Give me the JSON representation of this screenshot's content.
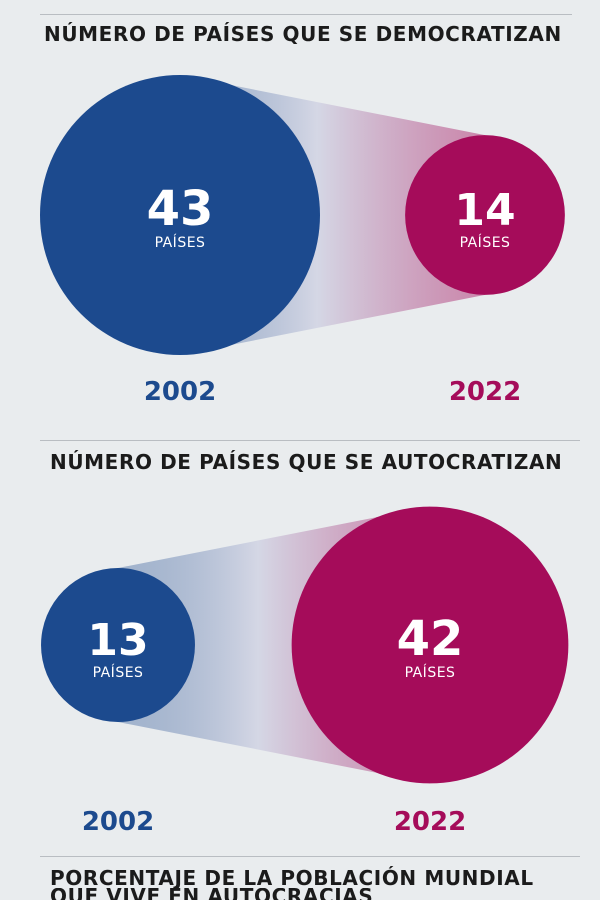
{
  "colors": {
    "blue": "#1c4a8e",
    "magenta": "#a50c5a",
    "background": "#e9ecee",
    "rule": "#b9bdc2"
  },
  "sections": [
    {
      "title": "NÚMERO DE PAÍSES QUE SE DEMOCRATIZAN"
    },
    {
      "title": "NÚMERO DE PAÍSES QUE SE AUTOCRATIZAN"
    },
    {
      "title": "PORCENTAJE DE LA POBLACIÓN MUNDIAL",
      "title_line2": "QUE VIVE EN AUTOCRACIAS"
    }
  ],
  "chart_data": [
    {
      "type": "bubble",
      "title": "NÚMERO DE PAÍSES QUE SE DEMOCRATIZAN",
      "unit": "PAÍSES",
      "categories": [
        "2002",
        "2022"
      ],
      "values": [
        43,
        14
      ],
      "value_labels": [
        "43",
        "14"
      ],
      "colors": [
        "blue",
        "magenta"
      ]
    },
    {
      "type": "bubble",
      "title": "NÚMERO DE PAÍSES QUE SE AUTOCRATIZAN",
      "unit": "PAÍSES",
      "categories": [
        "2002",
        "2022"
      ],
      "values": [
        13,
        42
      ],
      "value_labels": [
        "13",
        "42"
      ],
      "colors": [
        "blue",
        "magenta"
      ]
    }
  ]
}
